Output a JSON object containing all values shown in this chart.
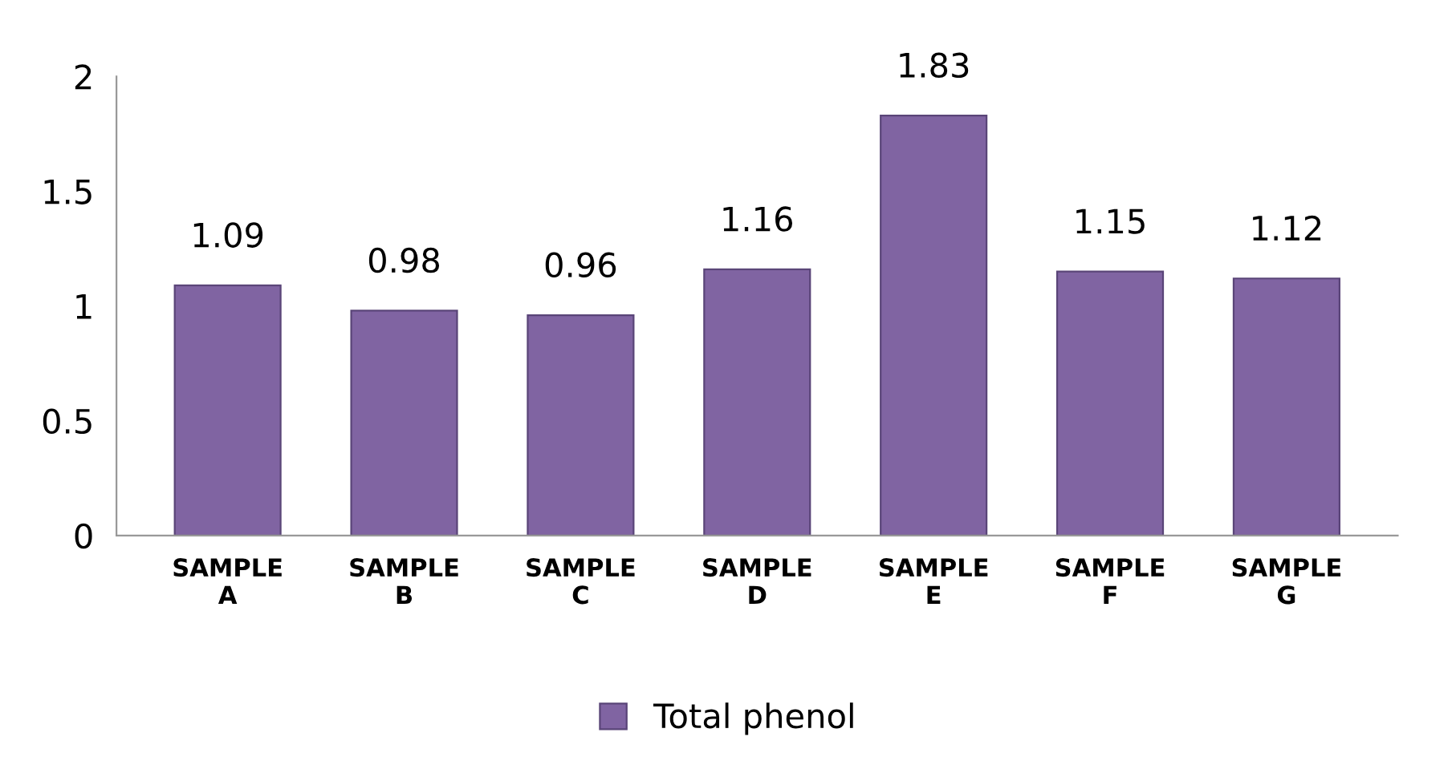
{
  "chart_data": {
    "type": "bar",
    "categories": [
      "SAMPLE\nA",
      "SAMPLE\nB",
      "SAMPLE\nC",
      "SAMPLE\nD",
      "SAMPLE\nE",
      "SAMPLE\nF",
      "SAMPLE\nG"
    ],
    "series": [
      {
        "name": "Total phenol",
        "color": "#8064a2",
        "values": [
          1.09,
          0.98,
          0.96,
          1.16,
          1.83,
          1.15,
          1.12
        ]
      }
    ],
    "ylim": [
      0,
      2
    ],
    "yticks": [
      0,
      0.5,
      1,
      1.5,
      2
    ],
    "data_labels": true,
    "grid": false,
    "legend": "bottom"
  }
}
